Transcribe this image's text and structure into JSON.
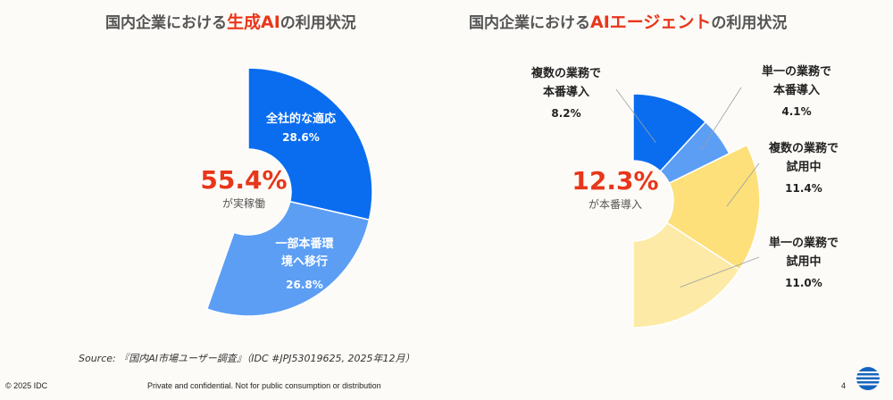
{
  "chart_titles": [
    {
      "prefix": "国内企業における",
      "highlight": "生成AI",
      "suffix": "の利用状況"
    },
    {
      "prefix": "国内企業における",
      "highlight": "AIエージェント",
      "suffix": "の利用状況"
    }
  ],
  "chart_data": [
    {
      "type": "pie",
      "center_label": {
        "value": "55.4%",
        "text": "が実稼働"
      },
      "slices": [
        {
          "name": "全社的な適応",
          "value": 28.6,
          "label": "28.6%",
          "color": "#0a6df0"
        },
        {
          "name": "一部本番環境へ移行",
          "value": 26.8,
          "label": "26.8%",
          "color": "#5c9ef4"
        }
      ]
    },
    {
      "type": "pie",
      "center_label": {
        "value": "12.3%",
        "text": "が本番導入"
      },
      "slices": [
        {
          "name": "複数の業務で本番導入",
          "value": 8.2,
          "label": "8.2%",
          "color": "#0a6df0"
        },
        {
          "name": "単一の業務で本番導入",
          "value": 4.1,
          "label": "4.1%",
          "color": "#5c9ef4"
        },
        {
          "name": "複数の業務で試用中",
          "value": 11.4,
          "label": "11.4%",
          "color": "#fde07a"
        },
        {
          "name": "単一の業務で試用中",
          "value": 11.0,
          "label": "11.0%",
          "color": "#fdeaa6"
        }
      ]
    }
  ],
  "source_text": "Source: 『国内AI市場ユーザー調査』（IDC #JPJ53019625, 2025年12月）",
  "footer": {
    "copyright": "© 2025 IDC",
    "confidential": "Private and confidential. Not for public consumption or distribution",
    "page": "4"
  },
  "colors": {
    "accent": "#e8361b"
  },
  "logo_icon": "idc-globe-logo"
}
